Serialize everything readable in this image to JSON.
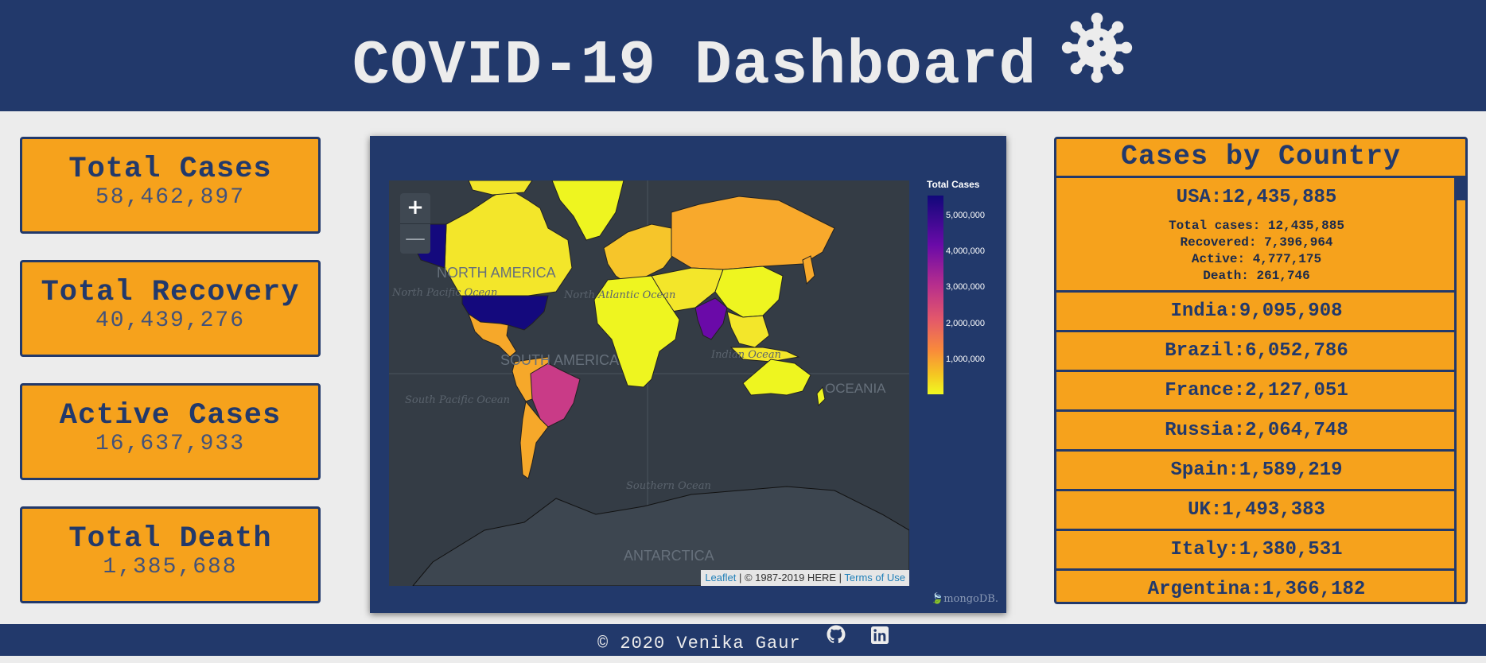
{
  "header": {
    "title": "COVID-19 Dashboard",
    "icon": "virus-icon"
  },
  "stats": [
    {
      "label": "Total Cases",
      "value": "58,462,897"
    },
    {
      "label": "Total Recovery",
      "value": "40,439,276"
    },
    {
      "label": "Active Cases",
      "value": "16,637,933"
    },
    {
      "label": "Total Death",
      "value": "1,385,688"
    }
  ],
  "map": {
    "zoom_in": "+",
    "zoom_out": "—",
    "labels": [
      "NORTH AMERICA",
      "SOUTH AMERICA",
      "OCEANIA",
      "ANTARCTICA",
      "North Pacific Ocean",
      "North Atlantic Ocean",
      "South Pacific Ocean",
      "Indian Ocean",
      "Southern Ocean"
    ],
    "attribution": {
      "leaflet": "Leaflet",
      "copyright": " | © 1987-2019 HERE | ",
      "terms": "Terms of Use"
    },
    "legend": {
      "title": "Total Cases",
      "ticks": [
        "5,000,000",
        "4,000,000",
        "3,000,000",
        "2,000,000",
        "1,000,000"
      ]
    },
    "brand": "mongoDB."
  },
  "countries": {
    "title": "Cases by Country",
    "expanded": {
      "name": "USA:12,435,885",
      "details": [
        "Total cases: 12,435,885",
        "Recovered: 7,396,964",
        "Active: 4,777,175",
        "Death: 261,746"
      ]
    },
    "items": [
      "India:9,095,908",
      "Brazil:6,052,786",
      "France:2,127,051",
      "Russia:2,064,748",
      "Spain:1,589,219",
      "UK:1,493,383",
      "Italy:1,380,531",
      "Argentina:1,366,182"
    ]
  },
  "footer": {
    "text": "© 2020 Venika Gaur",
    "icons": [
      "github-icon",
      "linkedin-icon"
    ]
  },
  "colors": {
    "navy": "#22396b",
    "orange": "#f6a21c",
    "background": "#ececec"
  }
}
